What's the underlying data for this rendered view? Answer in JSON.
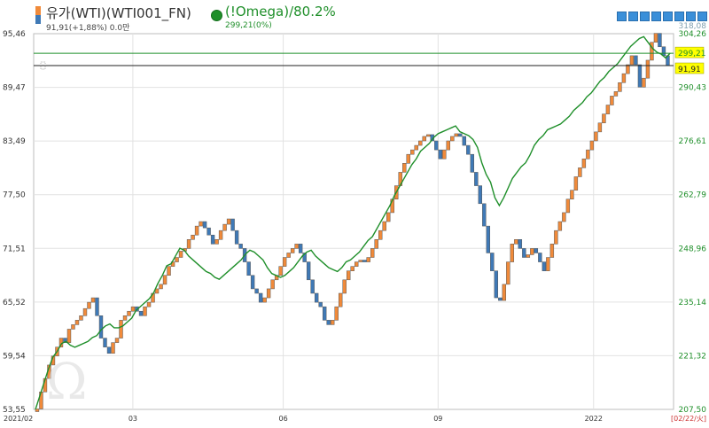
{
  "header": {
    "series1_name": "유가(WTI)(WTI001_FN)",
    "series1_sub": "91,91(+1,88%) 0.0만",
    "series2_name": "(!Omega)/80.2%",
    "series2_sub": "299,21(0%)"
  },
  "colors": {
    "up": "#f08a3a",
    "down": "#3f79b6",
    "line": "#1f8f2a",
    "grid": "#e2e2e2",
    "axis_text": "#333333",
    "right_axis_text": "#1f8f2a"
  },
  "chart_data": {
    "type": "line",
    "title": "",
    "x_tick_labels": [
      "2021/02",
      "03",
      "06",
      "09",
      "2022",
      "[02/22/火]"
    ],
    "left_axis": {
      "ylim": [
        53.55,
        95.46
      ],
      "ticks": [
        "95,46",
        "89,47",
        "83,49",
        "77,50",
        "71,51",
        "65,52",
        "59,54",
        "53,55"
      ]
    },
    "right_axis": {
      "ylim": [
        207.5,
        304.26
      ],
      "ticks": [
        "304,26",
        "290,43",
        "276,61",
        "262,79",
        "248,96",
        "235,14",
        "221,32",
        "207,50"
      ],
      "partial_top_label": "318,08"
    },
    "price_labels": {
      "series1_last": "91,91",
      "series2_last": "299,21"
    },
    "series": [
      {
        "name": "유가(WTI)(WTI001_FN)",
        "style": "step",
        "axis": "left",
        "values": [
          53.6,
          55.5,
          57.0,
          58.5,
          59.5,
          60.5,
          61.5,
          61.0,
          62.5,
          63.0,
          63.5,
          64.0,
          64.8,
          65.5,
          66.0,
          64.0,
          61.5,
          60.5,
          59.8,
          61.0,
          61.5,
          63.5,
          64.0,
          64.5,
          65.0,
          64.5,
          64.0,
          65.0,
          65.5,
          66.5,
          67.0,
          67.5,
          68.5,
          69.5,
          70.0,
          70.5,
          71.2,
          71.5,
          72.5,
          73.0,
          74.0,
          74.5,
          73.8,
          73.0,
          72.0,
          72.5,
          73.5,
          74.2,
          74.8,
          73.5,
          72.0,
          71.5,
          70.0,
          68.5,
          67.0,
          66.5,
          65.5,
          66.0,
          67.0,
          68.0,
          68.5,
          69.5,
          70.5,
          71.0,
          71.5,
          72.0,
          71.0,
          70.0,
          68.0,
          66.5,
          65.5,
          65.0,
          63.5,
          63.0,
          63.5,
          65.0,
          66.5,
          68.0,
          69.0,
          69.5,
          70.0,
          70.2,
          70.0,
          70.5,
          71.5,
          72.5,
          73.5,
          74.5,
          75.5,
          77.0,
          78.5,
          80.0,
          81.0,
          82.0,
          82.5,
          83.0,
          83.5,
          84.0,
          84.2,
          83.5,
          82.5,
          81.5,
          82.5,
          83.5,
          84.0,
          84.3,
          84.0,
          83.0,
          82.0,
          80.0,
          78.5,
          76.5,
          74.0,
          71.0,
          69.0,
          66.0,
          65.7,
          67.5,
          70.0,
          72.0,
          72.5,
          71.5,
          70.5,
          70.8,
          71.5,
          71.0,
          70.0,
          69.0,
          70.5,
          72.0,
          73.5,
          74.5,
          75.5,
          77.0,
          78.0,
          79.5,
          80.5,
          81.5,
          82.5,
          83.5,
          84.5,
          85.5,
          86.5,
          87.5,
          88.5,
          89.0,
          90.0,
          91.0,
          92.0,
          93.0,
          92.0,
          89.5,
          90.5,
          92.5,
          94.5,
          95.5,
          94.0,
          93.0,
          91.9
        ]
      },
      {
        "name": "(!Omega)/80.2%",
        "style": "line",
        "axis": "right",
        "values": [
          207.5,
          211.0,
          214.5,
          218.0,
          221.0,
          222.5,
          224.5,
          225.0,
          224.0,
          223.5,
          224.0,
          224.5,
          225.0,
          226.0,
          226.5,
          228.0,
          229.0,
          229.5,
          228.5,
          228.5,
          229.0,
          230.0,
          231.0,
          233.0,
          234.0,
          235.0,
          236.0,
          237.5,
          240.0,
          242.0,
          244.5,
          245.0,
          247.0,
          249.0,
          248.5,
          247.0,
          246.0,
          245.0,
          244.0,
          243.0,
          242.5,
          241.5,
          241.0,
          242.0,
          243.0,
          244.0,
          245.0,
          246.0,
          247.5,
          248.5,
          248.0,
          247.0,
          246.0,
          244.0,
          242.5,
          242.0,
          241.5,
          242.0,
          243.0,
          244.0,
          245.5,
          247.0,
          248.0,
          248.5,
          247.0,
          246.0,
          245.0,
          244.0,
          243.5,
          243.0,
          244.0,
          245.5,
          246.0,
          247.0,
          248.0,
          249.5,
          251.0,
          252.0,
          254.0,
          256.0,
          258.0,
          260.0,
          262.5,
          264.5,
          266.5,
          268.5,
          270.5,
          272.0,
          274.0,
          275.0,
          276.0,
          277.5,
          278.5,
          279.0,
          279.5,
          280.0,
          280.5,
          279.0,
          278.5,
          278.0,
          277.0,
          275.0,
          271.0,
          268.0,
          266.0,
          262.0,
          260.0,
          262.0,
          264.5,
          267.0,
          268.5,
          270.0,
          271.0,
          273.0,
          275.5,
          277.0,
          278.0,
          279.5,
          280.0,
          280.5,
          281.0,
          282.0,
          283.0,
          284.5,
          285.5,
          286.5,
          288.0,
          289.0,
          290.5,
          292.0,
          293.0,
          294.5,
          295.5,
          296.5,
          298.0,
          299.5,
          301.0,
          302.0,
          303.0,
          303.5,
          302.0,
          300.5,
          299.5,
          299.0,
          298.0,
          299.21
        ]
      }
    ]
  }
}
